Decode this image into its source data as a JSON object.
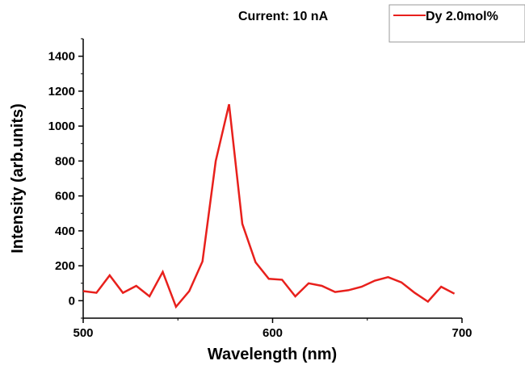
{
  "chart_data": {
    "type": "line",
    "annotation": "Current: 10 nA",
    "xlabel": "Wavelength (nm)",
    "ylabel": "Intensity (arb.units)",
    "xlim": [
      500,
      700
    ],
    "ylim": [
      -100,
      1500
    ],
    "x_ticks": [
      500,
      600,
      700
    ],
    "y_ticks": [
      0,
      200,
      400,
      600,
      800,
      1000,
      1200,
      1400
    ],
    "grid": false,
    "legend_position": "top-right",
    "series": [
      {
        "name": "Dy 2.0mol%",
        "color": "#e8201c",
        "x": [
          500,
          507,
          514,
          521,
          528,
          535,
          542,
          549,
          556,
          563,
          570,
          577,
          584,
          591,
          598,
          605,
          612,
          619,
          626,
          633,
          640,
          647,
          654,
          661,
          668,
          675,
          682,
          689,
          696
        ],
        "y": [
          55,
          45,
          145,
          45,
          85,
          25,
          165,
          -35,
          55,
          225,
          800,
          1125,
          440,
          220,
          125,
          120,
          25,
          100,
          85,
          50,
          60,
          80,
          115,
          135,
          105,
          45,
          -5,
          80,
          40
        ]
      }
    ]
  }
}
